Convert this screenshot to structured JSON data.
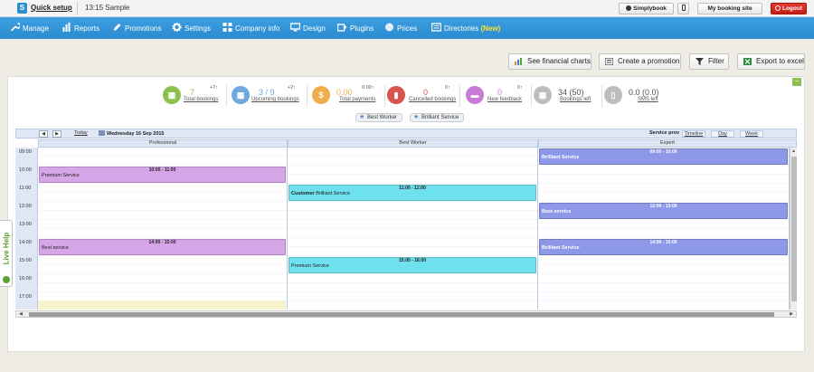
{
  "topbar": {
    "logo_letter": "S",
    "quick_setup": "Quick setup",
    "company": "13:15 Sample",
    "btn_simplybook": "Simplybook",
    "btn_booking_site": "My booking site",
    "btn_logout": "Logout"
  },
  "nav": {
    "items": [
      {
        "label": "Manage",
        "icon": "wrench-icon"
      },
      {
        "label": "Reports",
        "icon": "bar-chart-icon"
      },
      {
        "label": "Promotions",
        "icon": "pencil-icon"
      },
      {
        "label": "Settings",
        "icon": "gear-icon"
      },
      {
        "label": "Company info",
        "icon": "grid-icon"
      },
      {
        "label": "Design",
        "icon": "monitor-icon"
      },
      {
        "label": "Plugins",
        "icon": "puzzle-icon"
      },
      {
        "label": "Prices",
        "icon": "coin-icon"
      },
      {
        "label": "Directories",
        "icon": "directory-icon"
      }
    ],
    "new_badge": "(New)"
  },
  "actions": {
    "financial_charts": "See financial charts",
    "create_promotion": "Create a promotion",
    "filter": "Filter",
    "export_excel": "Export to excel"
  },
  "stats": [
    {
      "value": "7",
      "delta": "+7↑",
      "label": "Total bookings",
      "color": "#8cc152"
    },
    {
      "value": "3 / 9",
      "delta": "+2↑",
      "label": "Upcoming bookings",
      "color": "#6fa8dc"
    },
    {
      "value": "0.00",
      "delta": "0.00↑",
      "label": "Total payments",
      "color": "#f0ad4e"
    },
    {
      "value": "0",
      "delta": "0↑",
      "label": "Cancelled bookings",
      "color": "#d9534f"
    },
    {
      "value": "0",
      "delta": "0↑",
      "label": "New feedback",
      "color": "#c67bd4"
    },
    {
      "value": "34 (50)",
      "delta": "",
      "label": "Bookings left",
      "color": "#bdbdbd"
    },
    {
      "value": "0.0 (0.0)",
      "delta": "",
      "label": "SMS left",
      "color": "#bdbdbd"
    }
  ],
  "filters": [
    "Best Worker",
    "Brilliant Service"
  ],
  "calendar": {
    "prev": "◀",
    "next": "▶",
    "today": "Today",
    "date": "Wednesday 16 Sep 2015",
    "service_provider": "Service prov",
    "views": [
      "Timeline",
      "Day",
      "Week"
    ],
    "columns": [
      "Professional",
      "Best Worker",
      "Expert"
    ],
    "times": [
      "09:00",
      "10:00",
      "11:00",
      "12:00",
      "13:00",
      "14:00",
      "15:00",
      "16:00",
      "17:00"
    ],
    "events": [
      {
        "time": "10:00 - 11:00",
        "name": "Premium Service",
        "column": "Professional"
      },
      {
        "time": "14:00 - 15:00",
        "name": "Best service",
        "column": "Professional"
      },
      {
        "time": "11:00 - 12:00",
        "customer": "Customer",
        "name": "Brilliant Service",
        "column": "Best Worker"
      },
      {
        "time": "15:00 - 16:00",
        "name": "Premium Service",
        "column": "Best Worker"
      },
      {
        "time": "09:00 - 10:00",
        "name": "Brilliant Service",
        "column": "Expert"
      },
      {
        "time": "12:00 - 13:00",
        "name": "Best service",
        "column": "Expert"
      },
      {
        "time": "14:00 - 15:00",
        "name": "Brilliant Service",
        "column": "Expert"
      }
    ]
  },
  "livehelp": "Live Help"
}
